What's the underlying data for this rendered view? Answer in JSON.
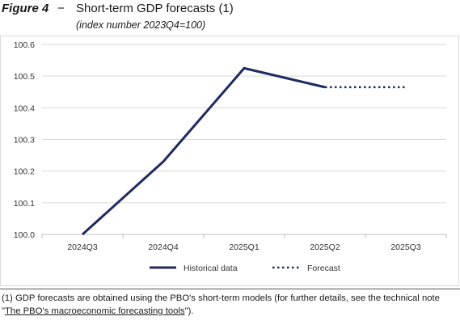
{
  "header": {
    "figure_label": "Figure 4",
    "dash": "−",
    "title": "Short-term GDP forecasts (1)",
    "subtitle": "(index number 2023Q4=100)"
  },
  "chart_data": {
    "type": "line",
    "categories": [
      "2024Q3",
      "2024Q4",
      "2025Q1",
      "2025Q2",
      "2025Q3"
    ],
    "ylim": [
      100.0,
      100.6
    ],
    "yticks": [
      "100.6",
      "100.5",
      "100.4",
      "100.3",
      "100.2",
      "100.1",
      "100.0"
    ],
    "grid": "horizontal",
    "legend_position": "bottom",
    "series": [
      {
        "name": "Historical data",
        "style": "solid",
        "color": "#1f2a5e",
        "values": [
          100.0,
          100.23,
          100.525,
          100.465,
          null
        ]
      },
      {
        "name": "Forecast",
        "style": "dotted",
        "color": "#1f2a5e",
        "values": [
          null,
          null,
          null,
          100.465,
          100.465
        ]
      }
    ],
    "legend": {
      "historical": "Historical data",
      "forecast": "Forecast"
    }
  },
  "footnote": {
    "line1": "(1) GDP forecasts are obtained using the PBO's short-term models (for further details, see the technical note",
    "line2_prefix": "\"",
    "line2_link": "The PBO's macroeconomic forecasting tools",
    "line2_suffix": "\")."
  }
}
